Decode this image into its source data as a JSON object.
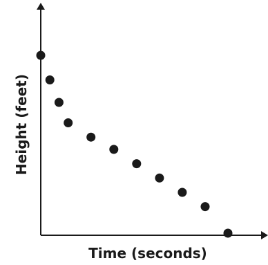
{
  "chart_data": {
    "type": "scatter",
    "title": "",
    "xlabel": "Time (seconds)",
    "ylabel": "Height (feet)",
    "x_ticks": [],
    "y_ticks": [],
    "xlim": [
      0,
      10
    ],
    "ylim": [
      0,
      10
    ],
    "grid": false,
    "legend": null,
    "marker_color": "#1a1a1a",
    "axis_color": "#1a1a1a",
    "series": [
      {
        "x": [
          0,
          0.4,
          0.8,
          1.2,
          2.2,
          3.2,
          4.2,
          5.2,
          6.2,
          7.2,
          8.2
        ],
        "y": [
          8.8,
          7.6,
          6.5,
          5.5,
          4.8,
          4.2,
          3.5,
          2.8,
          2.1,
          1.4,
          0.1
        ]
      }
    ]
  }
}
